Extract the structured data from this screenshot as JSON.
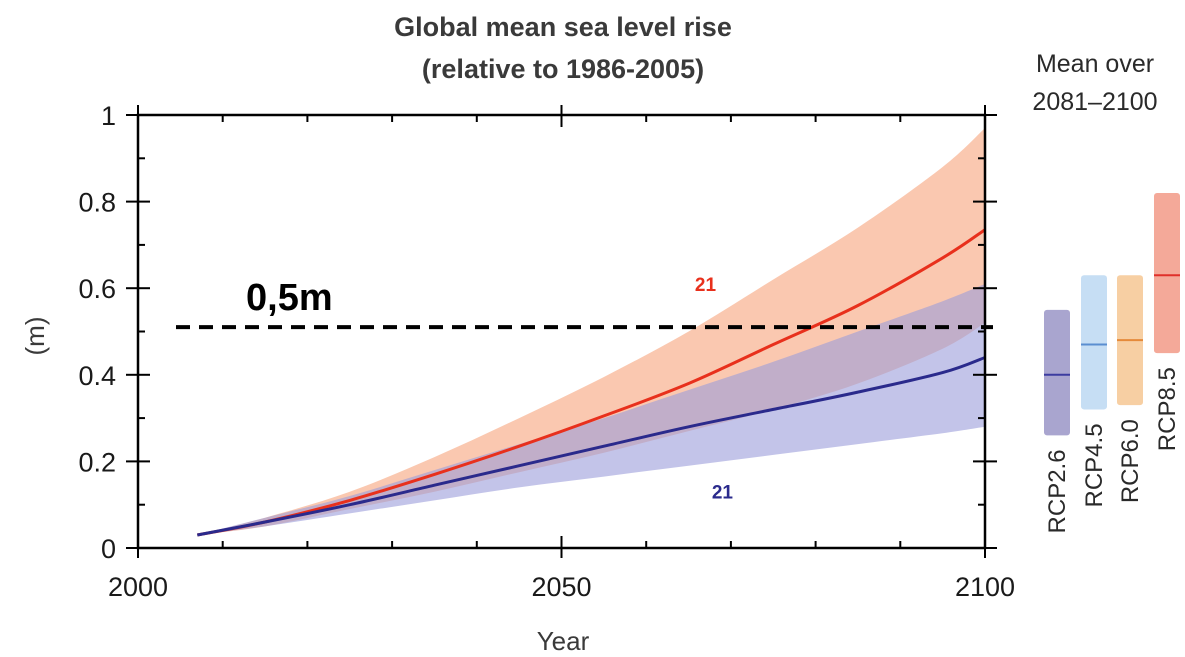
{
  "chart_data": {
    "type": "line",
    "title": "Global mean sea level rise",
    "subtitle": "(relative to 1986-2005)",
    "xlabel": "Year",
    "ylabel": "(m)",
    "xlim": [
      2000,
      2100
    ],
    "ylim": [
      0,
      1
    ],
    "x_ticks": [
      {
        "value": 2000,
        "label": "2000"
      },
      {
        "value": 2050,
        "label": "2050"
      },
      {
        "value": 2100,
        "label": "2100"
      }
    ],
    "y_ticks": [
      {
        "value": 0,
        "label": "0"
      },
      {
        "value": 0.2,
        "label": "0.2"
      },
      {
        "value": 0.4,
        "label": "0.4"
      },
      {
        "value": 0.6,
        "label": "0.6"
      },
      {
        "value": 0.8,
        "label": "0.8"
      },
      {
        "value": 1,
        "label": "1"
      }
    ],
    "x_minor_step": 10,
    "y_minor_step": 0.1,
    "grid": false,
    "x": [
      2007,
      2015,
      2025,
      2035,
      2045,
      2055,
      2065,
      2075,
      2085,
      2095,
      2100
    ],
    "series": [
      {
        "key": "rcp85",
        "color": "#e8301c",
        "band_color": "#f6a47c",
        "values": [
          0.03,
          0.06,
          0.11,
          0.17,
          0.235,
          0.305,
          0.38,
          0.47,
          0.56,
          0.67,
          0.735
        ],
        "lower": [
          0.03,
          0.05,
          0.09,
          0.13,
          0.175,
          0.22,
          0.27,
          0.32,
          0.38,
          0.46,
          0.52
        ],
        "upper": [
          0.03,
          0.07,
          0.13,
          0.21,
          0.3,
          0.395,
          0.5,
          0.62,
          0.74,
          0.88,
          0.97
        ],
        "count_label": "21",
        "count_label_pos": {
          "x": 2067,
          "y": 0.61
        }
      },
      {
        "key": "rcp26",
        "color": "#2a2a8c",
        "band_color": "#9b9cdb",
        "values": [
          0.03,
          0.06,
          0.1,
          0.145,
          0.19,
          0.235,
          0.28,
          0.32,
          0.36,
          0.405,
          0.44
        ],
        "lower": [
          0.03,
          0.05,
          0.08,
          0.11,
          0.14,
          0.165,
          0.19,
          0.215,
          0.24,
          0.265,
          0.28
        ],
        "upper": [
          0.03,
          0.07,
          0.12,
          0.18,
          0.24,
          0.3,
          0.365,
          0.43,
          0.5,
          0.57,
          0.61
        ],
        "count_label": "21",
        "count_label_pos": {
          "x": 2069,
          "y": 0.13
        }
      }
    ],
    "threshold": {
      "value": 0.51,
      "label": "0,5m",
      "color": "#000000"
    },
    "side_panel": {
      "title_line1": "Mean over",
      "title_line2": "2081–2100",
      "bars": [
        {
          "label": "RCP2.6",
          "low": 0.26,
          "high": 0.55,
          "mean": 0.4,
          "fill": "#a9a5cf",
          "line": "#3c3ca0"
        },
        {
          "label": "RCP4.5",
          "low": 0.32,
          "high": 0.63,
          "mean": 0.47,
          "fill": "#c6def4",
          "line": "#5a8ed0"
        },
        {
          "label": "RCP6.0",
          "low": 0.33,
          "high": 0.63,
          "mean": 0.48,
          "fill": "#f7cfa3",
          "line": "#e58a3a"
        },
        {
          "label": "RCP8.5",
          "low": 0.45,
          "high": 0.82,
          "mean": 0.63,
          "fill": "#f4a999",
          "line": "#e0302a"
        }
      ]
    }
  }
}
